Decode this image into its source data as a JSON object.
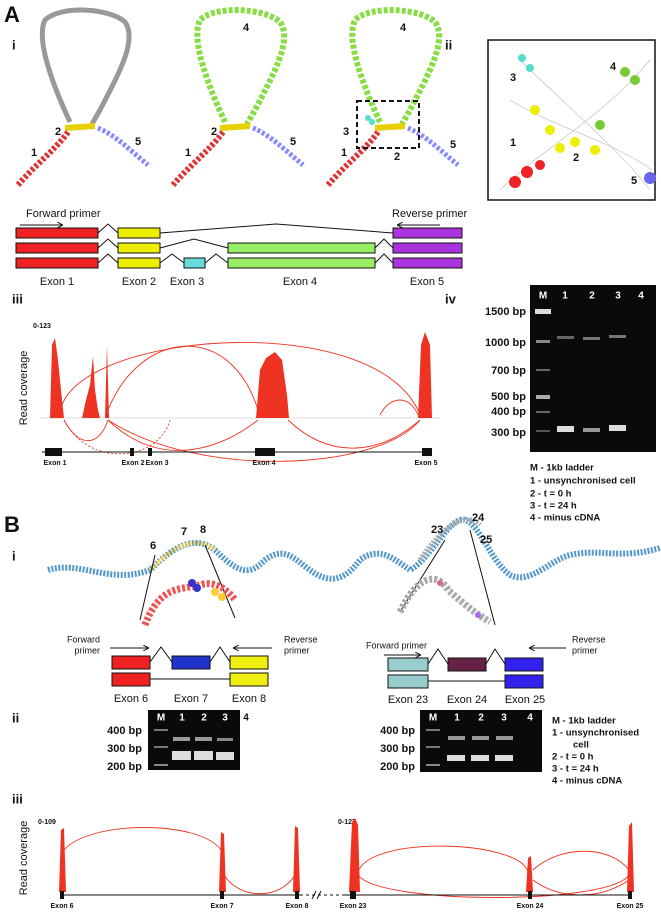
{
  "panel_a": {
    "label": "A",
    "sub_i": "i",
    "sub_ii": "ii",
    "sub_iii": "iii",
    "sub_iv": "iv",
    "graph_1_labels": [
      "1",
      "2",
      "5"
    ],
    "graph_2_labels": [
      "1",
      "2",
      "4",
      "5"
    ],
    "graph_3_labels": [
      "1",
      "2",
      "3",
      "4",
      "5"
    ],
    "zoom_labels": [
      "1",
      "2",
      "3",
      "4",
      "5"
    ],
    "gene_model": {
      "forward_primer": "Forward primer",
      "reverse_primer": "Reverse primer",
      "exons": [
        "Exon 1",
        "Exon 2",
        "Exon 3",
        "Exon 4",
        "Exon 5"
      ]
    },
    "coverage": {
      "range": "0-123",
      "y_label": "Read coverage",
      "exons": [
        "Exon 1",
        "Exon 2",
        "Exon 3",
        "Exon 4",
        "Exon 5"
      ]
    },
    "gel": {
      "lanes": [
        "M",
        "1",
        "2",
        "3",
        "4"
      ],
      "markers": [
        "1500 bp",
        "1000 bp",
        "700 bp",
        "500 bp",
        "400 bp",
        "300 bp"
      ],
      "legend": [
        "M - 1kb ladder",
        "1 - unsynchronised cell",
        "2 - t = 0 h",
        "3 - t = 24 h",
        "4 - minus cDNA"
      ]
    }
  },
  "panel_b": {
    "label": "B",
    "sub_i": "i",
    "sub_ii": "ii",
    "sub_iii": "iii",
    "graph_labels": [
      "6",
      "7",
      "8",
      "23",
      "24",
      "25"
    ],
    "gene_model_left": {
      "forward_primer": [
        "Forward",
        "primer"
      ],
      "reverse_primer": [
        "Reverse",
        "primer"
      ],
      "exons": [
        "Exon 6",
        "Exon 7",
        "Exon 8"
      ]
    },
    "gene_model_right": {
      "forward_primer": "Forward primer",
      "reverse_primer": [
        "Reverse",
        "primer"
      ],
      "exons": [
        "Exon 23",
        "Exon 24",
        "Exon 25"
      ]
    },
    "gel_left": {
      "lanes": [
        "M",
        "1",
        "2",
        "3",
        "4"
      ],
      "markers": [
        "400 bp",
        "300 bp",
        "200 bp"
      ]
    },
    "gel_right": {
      "lanes": [
        "M",
        "1",
        "2",
        "3",
        "4"
      ],
      "markers": [
        "400 bp",
        "300 bp",
        "200 bp"
      ]
    },
    "gel_legend": [
      "M - 1kb ladder",
      "1 - unsynchronised",
      "cell",
      "2 - t = 0 h",
      "3 - t = 24 h",
      "4 - minus cDNA"
    ],
    "coverage": {
      "range_left": "0-109",
      "range_right": "0-127",
      "y_label": "Read coverage",
      "exons": [
        "Exon 6",
        "Exon 7",
        "Exon 8",
        "Exon 23",
        "Exon 24",
        "Exon 25"
      ]
    }
  }
}
